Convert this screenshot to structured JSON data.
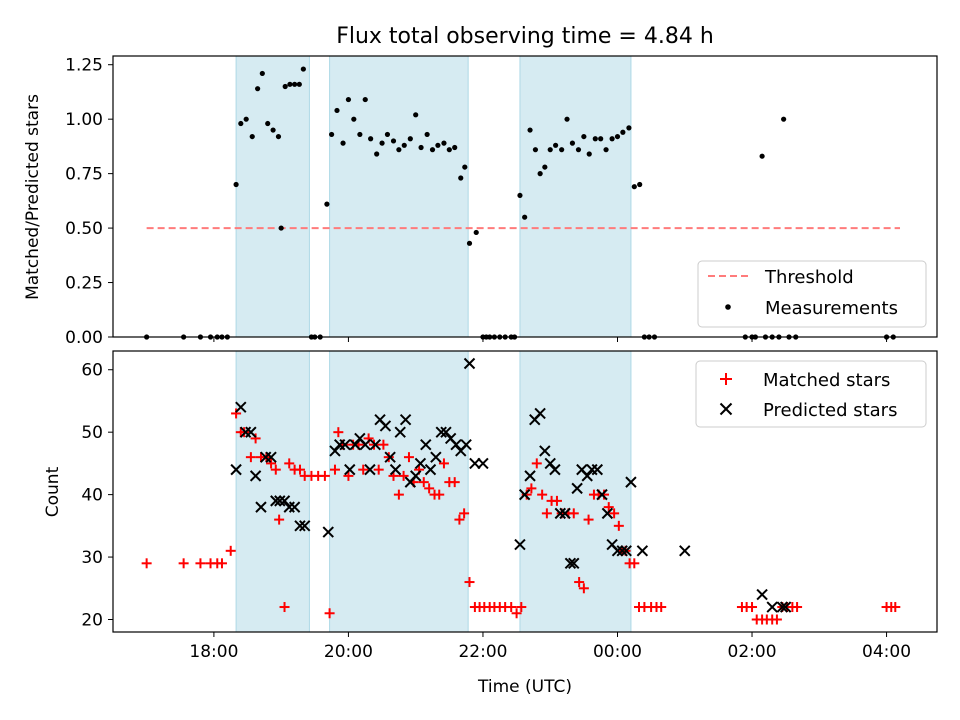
{
  "figure_title": "Flux total observing time = 4.84 h",
  "chart_data": [
    {
      "type": "scatter",
      "ylabel": "Matched/Predicted stars",
      "xlabel": "",
      "xlim_hours": [
        16.5,
        28.75
      ],
      "ylim": [
        0,
        1.29
      ],
      "yticks": [
        0.0,
        0.25,
        0.5,
        0.75,
        1.0,
        1.25
      ],
      "ytick_labels": [
        "0.00",
        "0.25",
        "0.50",
        "0.75",
        "1.00",
        "1.25"
      ],
      "shaded_intervals_hours": [
        [
          18.33,
          19.42
        ],
        [
          19.72,
          21.78
        ],
        [
          22.55,
          24.2
        ]
      ],
      "threshold": {
        "name": "Threshold",
        "y": 0.5,
        "x_range_hours": [
          17.0,
          28.2
        ],
        "color": "#ff7b7b"
      },
      "series": [
        {
          "name": "Measurements",
          "color": "#000000",
          "x": [
            17.0,
            17.55,
            17.8,
            17.95,
            18.05,
            18.12,
            18.2,
            18.33,
            18.4,
            18.48,
            18.57,
            18.65,
            18.72,
            18.8,
            18.88,
            18.96,
            19.0,
            19.06,
            19.13,
            19.2,
            19.27,
            19.33,
            19.45,
            19.5,
            19.58,
            19.68,
            19.75,
            19.83,
            19.92,
            20.0,
            20.08,
            20.17,
            20.25,
            20.33,
            20.42,
            20.5,
            20.58,
            20.67,
            20.75,
            20.83,
            20.92,
            21.0,
            21.08,
            21.17,
            21.25,
            21.33,
            21.42,
            21.5,
            21.58,
            21.67,
            21.73,
            21.8,
            21.9,
            22.0,
            22.05,
            22.1,
            22.17,
            22.25,
            22.33,
            22.42,
            22.47,
            22.55,
            22.62,
            22.7,
            22.78,
            22.85,
            22.92,
            23.0,
            23.08,
            23.17,
            23.25,
            23.33,
            23.42,
            23.5,
            23.58,
            23.67,
            23.75,
            23.83,
            23.92,
            24.0,
            24.08,
            24.17,
            24.25,
            24.33,
            24.4,
            24.47,
            24.55,
            25.9,
            26.0,
            26.05,
            26.15,
            26.2,
            26.3,
            26.4,
            26.47,
            26.55,
            26.65,
            28.0,
            28.1
          ],
          "y": [
            0.0,
            0.0,
            0.0,
            0.0,
            0.0,
            0.0,
            0.0,
            0.7,
            0.98,
            1.0,
            0.92,
            1.14,
            1.21,
            0.98,
            0.95,
            0.92,
            0.5,
            1.15,
            1.16,
            1.16,
            1.16,
            1.23,
            0.0,
            0.0,
            0.0,
            0.61,
            0.93,
            1.04,
            0.89,
            1.09,
            1.0,
            0.93,
            1.09,
            0.91,
            0.84,
            0.89,
            0.93,
            0.9,
            0.86,
            0.88,
            0.91,
            1.02,
            0.87,
            0.93,
            0.86,
            0.88,
            0.89,
            0.86,
            0.87,
            0.73,
            0.78,
            0.43,
            0.48,
            0.0,
            0.0,
            0.0,
            0.0,
            0.0,
            0.0,
            0.0,
            0.0,
            0.65,
            0.55,
            0.95,
            0.86,
            0.75,
            0.78,
            0.86,
            0.88,
            0.86,
            1.0,
            0.89,
            0.86,
            0.92,
            0.84,
            0.91,
            0.91,
            0.86,
            0.91,
            0.92,
            0.94,
            0.96,
            0.69,
            0.7,
            0.0,
            0.0,
            0.0,
            0.0,
            0.0,
            0.0,
            0.83,
            0.0,
            0.0,
            0.0,
            1.0,
            0.0,
            0.0,
            0.0,
            0.0
          ]
        }
      ],
      "legend": {
        "location": "lower right",
        "entries": [
          "Threshold",
          "Measurements"
        ]
      }
    },
    {
      "type": "scatter",
      "ylabel": "Count",
      "xlabel": "Time (UTC)",
      "xlim_hours": [
        16.5,
        28.75
      ],
      "ylim": [
        18,
        63
      ],
      "yticks": [
        20,
        30,
        40,
        50,
        60
      ],
      "ytick_labels": [
        "20",
        "30",
        "40",
        "50",
        "60"
      ],
      "xticks_hours": [
        18,
        20,
        22,
        24,
        26,
        28
      ],
      "xtick_labels": [
        "18:00",
        "20:00",
        "22:00",
        "00:00",
        "02:00",
        "04:00"
      ],
      "shaded_intervals_hours": [
        [
          18.33,
          19.42
        ],
        [
          19.72,
          21.78
        ],
        [
          22.55,
          24.2
        ]
      ],
      "series": [
        {
          "name": "Matched stars",
          "marker": "+",
          "color": "#ff0000",
          "x": [
            17.0,
            17.55,
            17.8,
            17.95,
            18.05,
            18.12,
            18.25,
            18.33,
            18.4,
            18.45,
            18.55,
            18.62,
            18.7,
            18.78,
            18.85,
            18.92,
            18.97,
            19.05,
            19.12,
            19.2,
            19.28,
            19.35,
            19.45,
            19.55,
            19.65,
            19.72,
            19.8,
            19.85,
            19.92,
            20.0,
            20.07,
            20.15,
            20.22,
            20.3,
            20.38,
            20.45,
            20.52,
            20.6,
            20.67,
            20.75,
            20.82,
            20.9,
            20.97,
            21.05,
            21.12,
            21.2,
            21.28,
            21.35,
            21.42,
            21.5,
            21.58,
            21.65,
            21.72,
            21.8,
            21.88,
            21.95,
            22.02,
            22.1,
            22.17,
            22.25,
            22.33,
            22.42,
            22.5,
            22.57,
            22.65,
            22.72,
            22.8,
            22.88,
            22.95,
            23.02,
            23.1,
            23.17,
            23.27,
            23.35,
            23.43,
            23.5,
            23.57,
            23.65,
            23.72,
            23.8,
            23.87,
            23.95,
            24.02,
            24.07,
            24.12,
            24.18,
            24.25,
            24.32,
            24.4,
            24.5,
            24.58,
            24.65,
            25.85,
            25.92,
            26.0,
            26.07,
            26.15,
            26.22,
            26.3,
            26.37,
            26.45,
            26.52,
            26.6,
            26.67,
            28.0,
            28.07,
            28.13
          ],
          "y": [
            29,
            29,
            29,
            29,
            29,
            29,
            31,
            53,
            50,
            50,
            46,
            49,
            46,
            46,
            45,
            44,
            36,
            22,
            45,
            44,
            44,
            43,
            43,
            43,
            43,
            21,
            44,
            50,
            48,
            43,
            48,
            48,
            44,
            49,
            48,
            44,
            48,
            46,
            43,
            40,
            43,
            46,
            42,
            44,
            42,
            41,
            40,
            40,
            45,
            42,
            42,
            36,
            37,
            26,
            22,
            22,
            22,
            22,
            22,
            22,
            22,
            22,
            21,
            22,
            40,
            41,
            45,
            40,
            37,
            39,
            39,
            37,
            37,
            37,
            26,
            25,
            36,
            40,
            40,
            40,
            38,
            37,
            35,
            31,
            31,
            29,
            29,
            22,
            22,
            22,
            22,
            22,
            22,
            22,
            22,
            20,
            20,
            20,
            20,
            20,
            22,
            22,
            22,
            22,
            22,
            22,
            22
          ],
          "note": ""
        },
        {
          "name": "Predicted stars",
          "marker": "x",
          "color": "#000000",
          "x": [
            18.33,
            18.4,
            18.47,
            18.55,
            18.62,
            18.7,
            18.77,
            18.85,
            18.92,
            18.98,
            19.05,
            19.12,
            19.2,
            19.28,
            19.35,
            19.7,
            19.8,
            19.87,
            19.95,
            20.02,
            20.1,
            20.17,
            20.25,
            20.32,
            20.4,
            20.47,
            20.55,
            20.62,
            20.7,
            20.77,
            20.85,
            20.92,
            21.0,
            21.07,
            21.15,
            21.22,
            21.3,
            21.38,
            21.45,
            21.52,
            21.6,
            21.67,
            21.75,
            21.8,
            21.88,
            22.0,
            22.55,
            22.62,
            22.7,
            22.77,
            22.85,
            22.92,
            23.0,
            23.07,
            23.15,
            23.22,
            23.3,
            23.35,
            23.4,
            23.47,
            23.55,
            23.62,
            23.7,
            23.77,
            23.85,
            23.92,
            24.0,
            24.07,
            24.13,
            24.2,
            24.37,
            25.0,
            26.15,
            26.3,
            26.45,
            26.5
          ],
          "y": [
            44,
            54,
            50,
            50,
            43,
            38,
            46,
            46,
            39,
            39,
            39,
            38,
            38,
            35,
            35,
            34,
            47,
            48,
            48,
            44,
            48,
            49,
            48,
            44,
            48,
            52,
            51,
            46,
            44,
            50,
            52,
            42,
            43,
            45,
            48,
            44,
            46,
            50,
            50,
            49,
            48,
            47,
            48,
            61,
            45,
            45,
            32,
            40,
            43,
            52,
            53,
            47,
            45,
            44,
            37,
            37,
            29,
            29,
            41,
            44,
            43,
            44,
            44,
            40,
            37,
            32,
            31,
            31,
            31,
            42,
            31,
            31,
            24,
            22,
            22,
            22
          ],
          "note": ""
        }
      ],
      "legend": {
        "location": "upper right",
        "entries": [
          "Matched stars",
          "Predicted stars"
        ]
      }
    }
  ]
}
